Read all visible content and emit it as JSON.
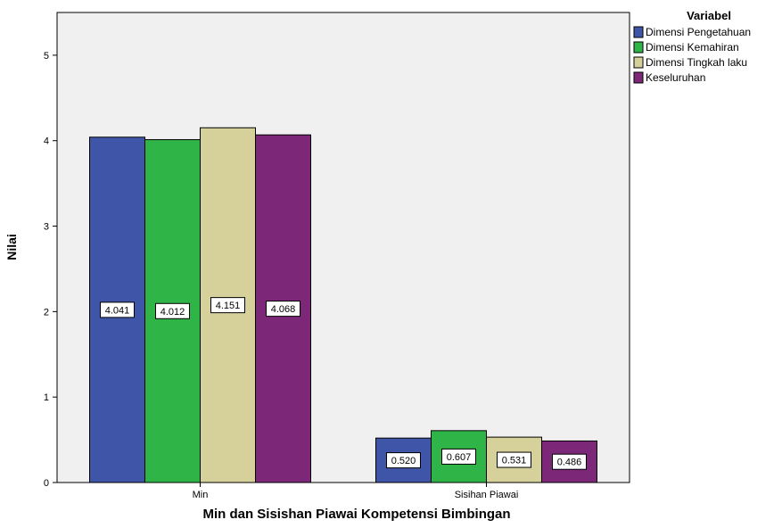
{
  "chart_data": {
    "type": "bar",
    "title": "",
    "xlabel": "Min dan Sisishan Piawai Kompetensi Bimbingan",
    "ylabel": "Nilai",
    "ylim": [
      0,
      5.5
    ],
    "yticks": [
      "0",
      "1",
      "2",
      "3",
      "4",
      "5"
    ],
    "grid": false,
    "legend_position": "right",
    "legend_title": "Variabel",
    "categories": [
      "Min",
      "Sisihan Piawai"
    ],
    "series": [
      {
        "name": "Dimensi Pengetahuan",
        "color": "#3f55a8",
        "values": [
          4.041,
          0.52
        ],
        "labels": [
          "4.041",
          "0.520"
        ]
      },
      {
        "name": "Dimensi Kemahiran",
        "color": "#2fb447",
        "values": [
          4.012,
          0.607
        ],
        "labels": [
          "4.012",
          "0.607"
        ]
      },
      {
        "name": "Dimensi Tingkah laku",
        "color": "#d6d09a",
        "values": [
          4.151,
          0.531
        ],
        "labels": [
          "4.151",
          "0.531"
        ]
      },
      {
        "name": "Keseluruhan",
        "color": "#7d2778",
        "values": [
          4.068,
          0.486
        ],
        "labels": [
          "4.068",
          "0.486"
        ]
      }
    ]
  }
}
